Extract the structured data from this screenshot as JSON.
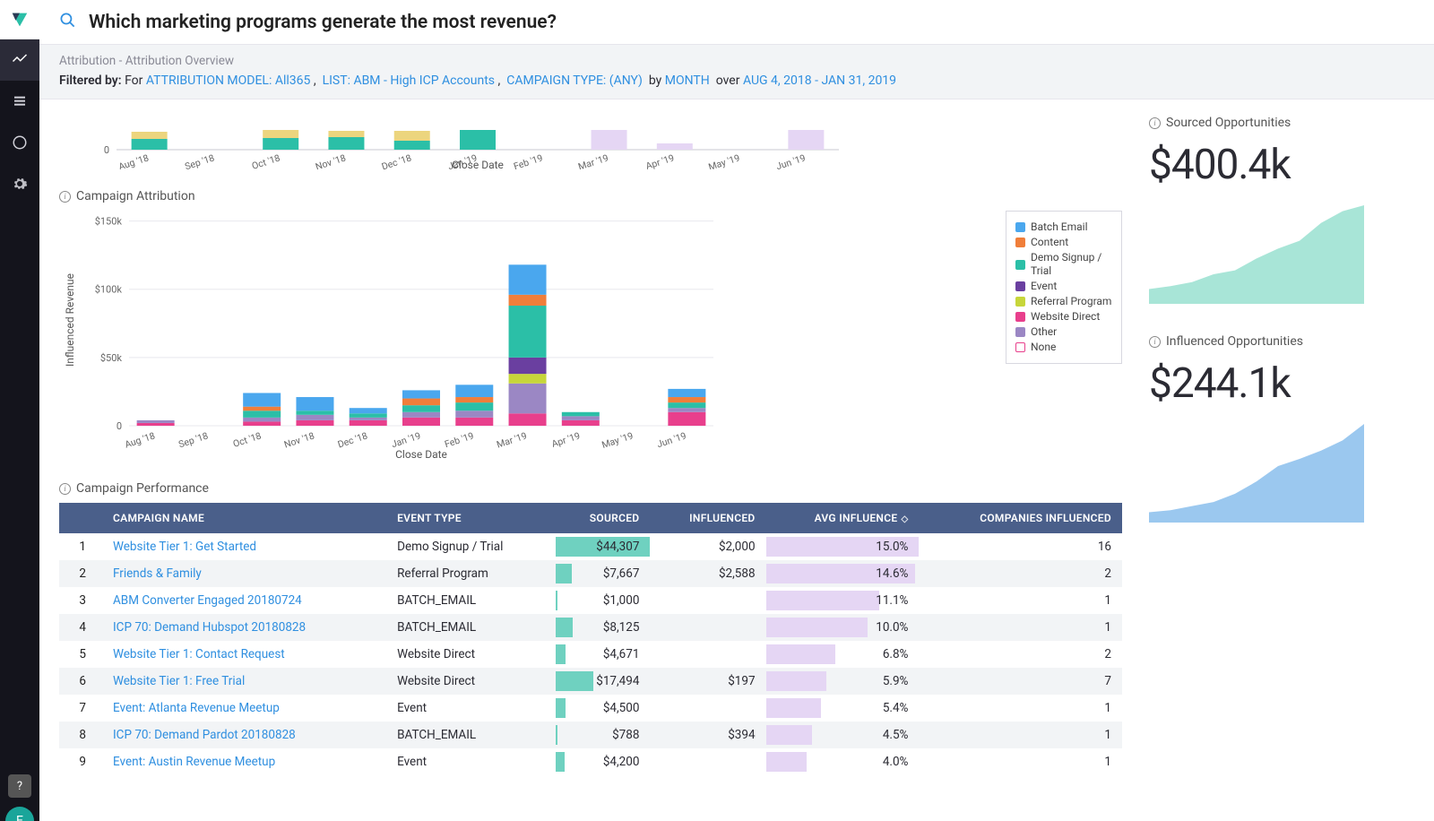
{
  "colors": {
    "link": "#2f8fe0",
    "header_bg": "#4a5f8a",
    "row_alt": "#f2f4f6",
    "bar_teal": "#6fd1c0",
    "bar_lilac_light": "#e5d6f4",
    "bar_teal_strong": "#2bbfa7",
    "spark_teal": "#a8e5d7",
    "spark_blue": "#9bc8ef"
  },
  "header": {
    "question": "Which marketing programs generate the most revenue?"
  },
  "breadcrumb": "Attribution - Attribution Overview",
  "filters": {
    "label": "Filtered by:",
    "for": "For",
    "model": "ATTRIBUTION MODEL: All365",
    "list": "LIST: ABM - High ICP Accounts",
    "campaign_type": "CAMPAIGN TYPE: (ANY)",
    "by": "by",
    "granularity": "MONTH",
    "over": "over",
    "range": "AUG 4, 2018 - JAN 31, 2019"
  },
  "chart1": {
    "x_title": "Close Date",
    "months": [
      "Aug '18",
      "Sep '18",
      "Oct '18",
      "Nov '18",
      "Dec '18",
      "Jan '19",
      "Feb '19",
      "Mar '19",
      "Apr '19",
      "May '19",
      "Jun '19"
    ],
    "y_tick": "0",
    "segments": [
      {
        "m": 0,
        "stacks": [
          [
            "#2bbfa7",
            12
          ],
          [
            "#ecd57e",
            8
          ]
        ]
      },
      {
        "m": 2,
        "stacks": [
          [
            "#2bbfa7",
            13
          ],
          [
            "#ecd57e",
            9
          ]
        ]
      },
      {
        "m": 3,
        "stacks": [
          [
            "#2bbfa7",
            14
          ],
          [
            "#ecd57e",
            7
          ]
        ]
      },
      {
        "m": 4,
        "stacks": [
          [
            "#2bbfa7",
            10
          ],
          [
            "#ecd57e",
            11
          ]
        ]
      },
      {
        "m": 5,
        "stacks": [
          [
            "#2bbfa7",
            22
          ]
        ]
      },
      {
        "m": 7,
        "stacks": [
          [
            "#e5d6f4",
            22
          ]
        ]
      },
      {
        "m": 8,
        "stacks": [
          [
            "#e5d6f4",
            7
          ]
        ]
      },
      {
        "m": 10,
        "stacks": [
          [
            "#e5d6f4",
            22
          ]
        ]
      }
    ]
  },
  "chart2": {
    "title": "Campaign Attribution",
    "y_title": "Influenced Revenue",
    "x_title": "Close Date",
    "months": [
      "Aug '18",
      "Sep '18",
      "Oct '18",
      "Nov '18",
      "Dec '18",
      "Jan '19",
      "Feb '19",
      "Mar '19",
      "Apr '19",
      "May '19",
      "Jun '19"
    ],
    "y_ticks": [
      "0",
      "$50k",
      "$100k",
      "$150k"
    ],
    "ymax": 155,
    "legend": [
      {
        "label": "Batch Email",
        "color": "#4aa7ee"
      },
      {
        "label": "Content",
        "color": "#f07e3a"
      },
      {
        "label": "Demo Signup / Trial",
        "color": "#2bbfa7"
      },
      {
        "label": "Event",
        "color": "#6a3fa0"
      },
      {
        "label": "Referral Program",
        "color": "#c7d63a"
      },
      {
        "label": "Website Direct",
        "color": "#e83f8c"
      },
      {
        "label": "Other",
        "color": "#9b87c4"
      },
      {
        "label": "None",
        "color": "#ffffff",
        "border": "#e83f8c"
      }
    ],
    "bars": [
      {
        "m": 0,
        "stacks": [
          [
            "#e83f8c",
            2
          ],
          [
            "#9b87c4",
            2
          ]
        ]
      },
      {
        "m": 2,
        "stacks": [
          [
            "#e83f8c",
            3
          ],
          [
            "#9b87c4",
            3
          ],
          [
            "#2bbfa7",
            5
          ],
          [
            "#f07e3a",
            3
          ],
          [
            "#4aa7ee",
            10
          ]
        ]
      },
      {
        "m": 3,
        "stacks": [
          [
            "#e83f8c",
            4
          ],
          [
            "#9b87c4",
            4
          ],
          [
            "#2bbfa7",
            3
          ],
          [
            "#4aa7ee",
            10
          ]
        ]
      },
      {
        "m": 4,
        "stacks": [
          [
            "#e83f8c",
            4
          ],
          [
            "#9b87c4",
            2
          ],
          [
            "#2bbfa7",
            3
          ],
          [
            "#4aa7ee",
            4
          ]
        ]
      },
      {
        "m": 5,
        "stacks": [
          [
            "#e83f8c",
            6
          ],
          [
            "#9b87c4",
            4
          ],
          [
            "#2bbfa7",
            5
          ],
          [
            "#f07e3a",
            5
          ],
          [
            "#4aa7ee",
            6
          ]
        ]
      },
      {
        "m": 6,
        "stacks": [
          [
            "#e83f8c",
            6
          ],
          [
            "#9b87c4",
            5
          ],
          [
            "#2bbfa7",
            6
          ],
          [
            "#f07e3a",
            4
          ],
          [
            "#4aa7ee",
            9
          ]
        ]
      },
      {
        "m": 7,
        "stacks": [
          [
            "#e83f8c",
            9
          ],
          [
            "#9b87c4",
            22
          ],
          [
            "#c7d63a",
            7
          ],
          [
            "#6a3fa0",
            12
          ],
          [
            "#2bbfa7",
            38
          ],
          [
            "#f07e3a",
            8
          ],
          [
            "#4aa7ee",
            22
          ]
        ]
      },
      {
        "m": 8,
        "stacks": [
          [
            "#e83f8c",
            4
          ],
          [
            "#9b87c4",
            3
          ],
          [
            "#2bbfa7",
            3
          ]
        ]
      },
      {
        "m": 10,
        "stacks": [
          [
            "#e83f8c",
            10
          ],
          [
            "#9b87c4",
            3
          ],
          [
            "#2bbfa7",
            4
          ],
          [
            "#f07e3a",
            4
          ],
          [
            "#4aa7ee",
            6
          ]
        ]
      }
    ]
  },
  "kpi": {
    "sourced": {
      "label": "Sourced Opportunities",
      "value": "$400.4k",
      "spark": [
        15,
        18,
        22,
        30,
        34,
        46,
        56,
        64,
        82,
        94,
        100
      ],
      "color": "#a8e5d7"
    },
    "influenced": {
      "label": "Influenced Opportunities",
      "value": "$244.1k",
      "spark": [
        10,
        12,
        16,
        20,
        28,
        40,
        55,
        62,
        70,
        80,
        96
      ],
      "color": "#9bc8ef"
    }
  },
  "table": {
    "title": "Campaign Performance",
    "columns": [
      "CAMPAIGN NAME",
      "EVENT TYPE",
      "SOURCED",
      "INFLUENCED",
      "AVG INFLUENCE",
      "COMPANIES INFLUENCED"
    ],
    "sort_col": 4,
    "max_sourced": 44307,
    "max_influence": 15.0,
    "rows": [
      {
        "i": 1,
        "name": "Website Tier 1: Get Started",
        "type": "Demo Signup / Trial",
        "sourced": "$44,307",
        "sourced_v": 44307,
        "influenced": "$2,000",
        "avg": "15.0%",
        "avg_v": 15.0,
        "comp": "16"
      },
      {
        "i": 2,
        "name": "Friends & Family",
        "type": "Referral Program",
        "sourced": "$7,667",
        "sourced_v": 7667,
        "influenced": "$2,588",
        "avg": "14.6%",
        "avg_v": 14.6,
        "comp": "2"
      },
      {
        "i": 3,
        "name": "ABM Converter Engaged 20180724",
        "type": "BATCH_EMAIL",
        "sourced": "$1,000",
        "sourced_v": 1000,
        "influenced": "",
        "avg": "11.1%",
        "avg_v": 11.1,
        "comp": "1"
      },
      {
        "i": 4,
        "name": "ICP 70: Demand Hubspot 20180828",
        "type": "BATCH_EMAIL",
        "sourced": "$8,125",
        "sourced_v": 8125,
        "influenced": "",
        "avg": "10.0%",
        "avg_v": 10.0,
        "comp": "1"
      },
      {
        "i": 5,
        "name": "Website Tier 1: Contact Request",
        "type": "Website Direct",
        "sourced": "$4,671",
        "sourced_v": 4671,
        "influenced": "",
        "avg": "6.8%",
        "avg_v": 6.8,
        "comp": "2"
      },
      {
        "i": 6,
        "name": "Website Tier 1: Free Trial",
        "type": "Website Direct",
        "sourced": "$17,494",
        "sourced_v": 17494,
        "influenced": "$197",
        "avg": "5.9%",
        "avg_v": 5.9,
        "comp": "7"
      },
      {
        "i": 7,
        "name": "Event: Atlanta Revenue Meetup",
        "type": "Event",
        "sourced": "$4,500",
        "sourced_v": 4500,
        "influenced": "",
        "avg": "5.4%",
        "avg_v": 5.4,
        "comp": "1"
      },
      {
        "i": 8,
        "name": "ICP 70: Demand Pardot 20180828",
        "type": "BATCH_EMAIL",
        "sourced": "$788",
        "sourced_v": 788,
        "influenced": "$394",
        "avg": "4.5%",
        "avg_v": 4.5,
        "comp": "1"
      },
      {
        "i": 9,
        "name": "Event: Austin Revenue Meetup",
        "type": "Event",
        "sourced": "$4,200",
        "sourced_v": 4200,
        "influenced": "",
        "avg": "4.0%",
        "avg_v": 4.0,
        "comp": "1"
      }
    ]
  }
}
